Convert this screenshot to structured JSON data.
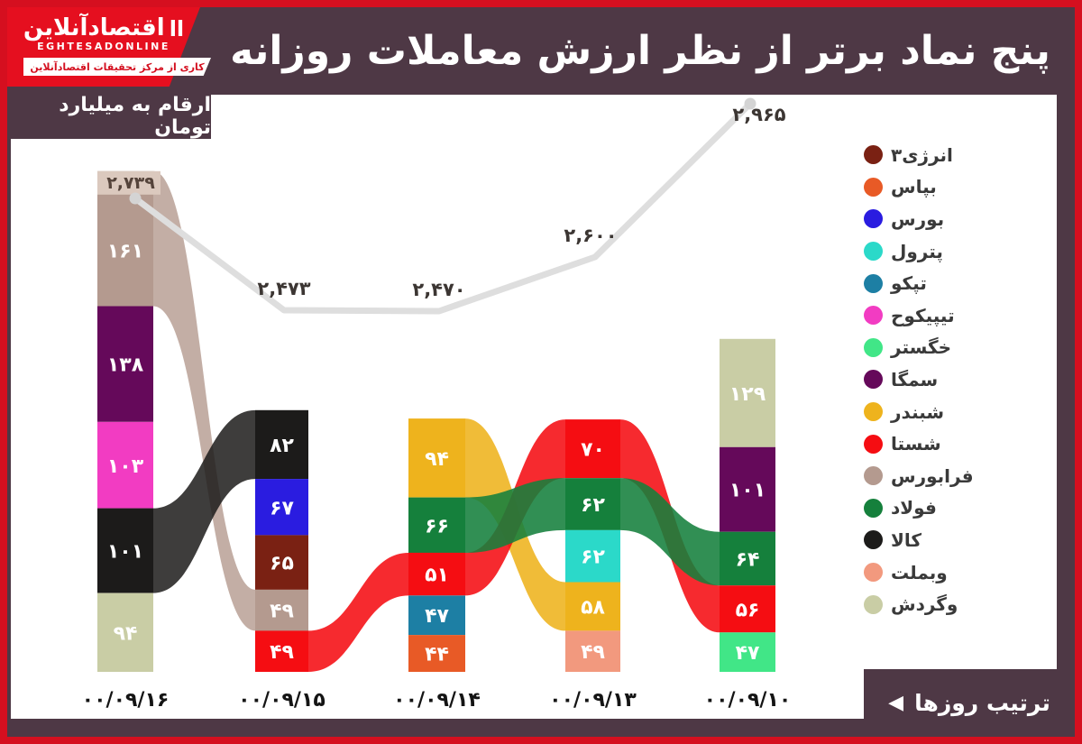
{
  "header": {
    "logo": {
      "brand_fa": "اقتصادآنلاین",
      "brand_bars": "اا",
      "brand_en": "EGHTESADONLINE",
      "tagline": "کاری از مرکز تحقیقات اقتصادآنلاین"
    },
    "title": "پنج نماد برتر از نظر ارزش معاملات روزانه",
    "units_label": "ارقام به میلیارد تومان"
  },
  "footer": {
    "order_label": "ترتیب روزها",
    "order_arrow": "◀"
  },
  "legend": {
    "items": [
      {
        "name": "انرژی۳",
        "color": "#7a2113"
      },
      {
        "name": "بپاس",
        "color": "#e85a26"
      },
      {
        "name": "بورس",
        "color": "#2a1ce0"
      },
      {
        "name": "پترول",
        "color": "#2bd9c9"
      },
      {
        "name": "تپکو",
        "color": "#1d7fa4"
      },
      {
        "name": "تیپیکوح",
        "color": "#f23cc2"
      },
      {
        "name": "خگستر",
        "color": "#41e687"
      },
      {
        "name": "سمگا",
        "color": "#65095a"
      },
      {
        "name": "شبندر",
        "color": "#eeb31d"
      },
      {
        "name": "شستا",
        "color": "#f50d12"
      },
      {
        "name": "فرابورس",
        "color": "#b49a8f"
      },
      {
        "name": "فولاد",
        "color": "#15803c"
      },
      {
        "name": "کالا",
        "color": "#1c1b1a"
      },
      {
        "name": "وبملت",
        "color": "#f2997e"
      },
      {
        "name": "وگردش",
        "color": "#c9cda5"
      }
    ]
  },
  "chart_data": {
    "type": "bump-sankey",
    "unit": "میلیارد تومان",
    "title": "پنج نماد برتر از نظر ارزش معاملات روزانه",
    "columns": [
      {
        "date_fa": "۰۰/۰۹/۱۶",
        "total": 2739,
        "total_fa": "۲,۷۳۹",
        "blocks": [
          {
            "symbol": "فرابورس",
            "value": 161,
            "value_fa": "۱۶۱"
          },
          {
            "symbol": "سمگا",
            "value": 138,
            "value_fa": "۱۳۸"
          },
          {
            "symbol": "تیپیکوح",
            "value": 103,
            "value_fa": "۱۰۳"
          },
          {
            "symbol": "کالا",
            "value": 101,
            "value_fa": "۱۰۱"
          },
          {
            "symbol": "وگردش",
            "value": 94,
            "value_fa": "۹۴"
          }
        ]
      },
      {
        "date_fa": "۰۰/۰۹/۱۵",
        "total": 2473,
        "total_fa": "۲,۴۷۳",
        "blocks": [
          {
            "symbol": "کالا",
            "value": 82,
            "value_fa": "۸۲"
          },
          {
            "symbol": "بورس",
            "value": 67,
            "value_fa": "۶۷"
          },
          {
            "symbol": "انرژی۳",
            "value": 65,
            "value_fa": "۶۵"
          },
          {
            "symbol": "فرابورس",
            "value": 49,
            "value_fa": "۴۹"
          },
          {
            "symbol": "شستا",
            "value": 49,
            "value_fa": "۴۹"
          }
        ]
      },
      {
        "date_fa": "۰۰/۰۹/۱۴",
        "total": 2470,
        "total_fa": "۲,۴۷۰",
        "blocks": [
          {
            "symbol": "شبندر",
            "value": 94,
            "value_fa": "۹۴"
          },
          {
            "symbol": "فولاد",
            "value": 66,
            "value_fa": "۶۶"
          },
          {
            "symbol": "شستا",
            "value": 51,
            "value_fa": "۵۱"
          },
          {
            "symbol": "تپکو",
            "value": 47,
            "value_fa": "۴۷"
          },
          {
            "symbol": "بپاس",
            "value": 44,
            "value_fa": "۴۴"
          }
        ]
      },
      {
        "date_fa": "۰۰/۰۹/۱۳",
        "total": 2600,
        "total_fa": "۲,۶۰۰",
        "blocks": [
          {
            "symbol": "شستا",
            "value": 70,
            "value_fa": "۷۰"
          },
          {
            "symbol": "فولاد",
            "value": 62,
            "value_fa": "۶۲"
          },
          {
            "symbol": "پترول",
            "value": 62,
            "value_fa": "۶۲"
          },
          {
            "symbol": "شبندر",
            "value": 58,
            "value_fa": "۵۸"
          },
          {
            "symbol": "وبملت",
            "value": 49,
            "value_fa": "۴۹"
          }
        ]
      },
      {
        "date_fa": "۰۰/۰۹/۱۰",
        "total": 2965,
        "total_fa": "۲,۹۶۵",
        "blocks": [
          {
            "symbol": "وگردش",
            "value": 129,
            "value_fa": "۱۲۹"
          },
          {
            "symbol": "سمگا",
            "value": 101,
            "value_fa": "۱۰۱"
          },
          {
            "symbol": "فولاد",
            "value": 64,
            "value_fa": "۶۴"
          },
          {
            "symbol": "شستا",
            "value": 56,
            "value_fa": "۵۶"
          },
          {
            "symbol": "خگستر",
            "value": 47,
            "value_fa": "۴۷"
          }
        ]
      }
    ],
    "flows": [
      {
        "pair": 0,
        "symbol": "فرابورس"
      },
      {
        "pair": 0,
        "symbol": "کالا"
      },
      {
        "pair": 1,
        "symbol": "شستا"
      },
      {
        "pair": 2,
        "symbol": "شبندر"
      },
      {
        "pair": 2,
        "symbol": "شستا"
      },
      {
        "pair": 2,
        "symbol": "فولاد"
      },
      {
        "pair": 3,
        "symbol": "شستا"
      },
      {
        "pair": 3,
        "symbol": "فولاد"
      }
    ],
    "line_series": {
      "name": "ارزش کل معاملات روزانه",
      "values": [
        2739,
        2473,
        2470,
        2600,
        2965
      ]
    }
  },
  "colors": {
    "accent_red": "#d50f1f",
    "maroon": "#4e3845",
    "line_gray": "#dedede",
    "cap_tan": "#dbc9be",
    "cap_text": "#55443b",
    "line_label": "#3c3633",
    "date_text": "#141414"
  }
}
